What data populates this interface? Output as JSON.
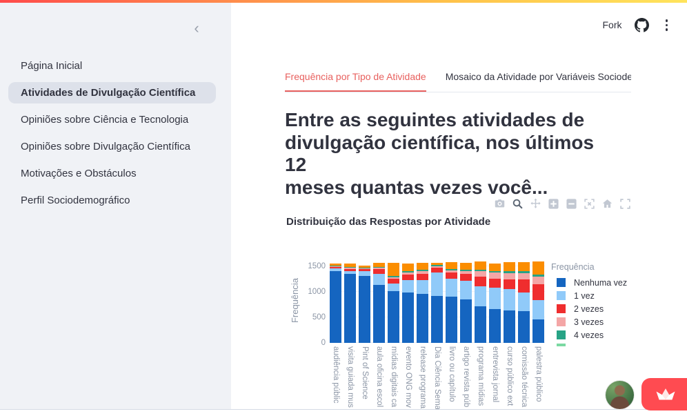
{
  "theme": {
    "decoration_gradient": [
      "#ff4b4b",
      "#ffc24a",
      "#ffe45c"
    ],
    "sidebar_bg": "#f0f2f6",
    "active_tab_color": "#e8605e",
    "badge_color": "#ff4b51"
  },
  "header": {
    "fork_label": "Fork",
    "icons": [
      "github-icon",
      "overflow-menu-icon"
    ]
  },
  "sidebar": {
    "collapse_icon": "chevron-left-icon",
    "items": [
      {
        "label": "Página Inicial",
        "active": false
      },
      {
        "label": "Atividades de Divulgação Científica",
        "active": true
      },
      {
        "label": "Opiniões sobre Ciência e Tecnologia",
        "active": false
      },
      {
        "label": "Opiniões sobre Divulgação Científica",
        "active": false
      },
      {
        "label": "Motivações e Obstáculos",
        "active": false
      },
      {
        "label": "Perfil Sociodemográfico",
        "active": false
      }
    ]
  },
  "tabs": [
    {
      "label": "Frequência por Tipo de Atividade",
      "active": true
    },
    {
      "label": "Mosaico da Atividade por Variáveis Sociodemográ",
      "active": false
    }
  ],
  "page": {
    "heading": "Entre as seguintes atividades de\ndivulgação científica, nos últimos 12\nmeses quantas vezes você..."
  },
  "chart": {
    "title": "Distribuição das Respostas por Atividade",
    "legend_title": "Frequência",
    "modebar": [
      {
        "name": "camera-icon",
        "active": false
      },
      {
        "name": "zoom-icon",
        "active": true
      },
      {
        "name": "pan-icon",
        "active": false
      },
      {
        "name": "zoom-in-icon",
        "active": false
      },
      {
        "name": "zoom-out-icon",
        "active": false
      },
      {
        "name": "autoscale-icon",
        "active": false
      },
      {
        "name": "reset-axes-icon",
        "active": false
      },
      {
        "name": "fullscreen-icon",
        "active": false
      }
    ],
    "legend_clipped_next_swatch_color": "#7bd9a2"
  },
  "chart_data": {
    "type": "bar",
    "stacked": true,
    "title": "Distribuição das Respostas por Atividade",
    "xlabel": "",
    "ylabel": "Frequência",
    "ylim": [
      0,
      1650
    ],
    "yticks": [
      0,
      500,
      1000,
      1500
    ],
    "grid": true,
    "legend_position": "right",
    "legend_title": "Frequência",
    "categories": [
      "audiência públic",
      "visita guiada mus",
      "Pint of Science",
      "aula oficina escol",
      "mídias digitais ca",
      "evento ONG mov",
      "release programa",
      "Dia Ciência Sema",
      "livro ou capítulo",
      "artigo revista púb",
      "programa mídias",
      "entrevista jornal",
      "curso público ext",
      "comissão técnica",
      "palestra público"
    ],
    "series": [
      {
        "name": "Nenhuma vez",
        "color": "#1565c0",
        "label_visible": true,
        "values": [
          1400,
          1350,
          1315,
          1140,
          1020,
          990,
          965,
          915,
          905,
          850,
          715,
          665,
          640,
          620,
          465
        ]
      },
      {
        "name": "1 vez",
        "color": "#90caf9",
        "label_visible": true,
        "values": [
          55,
          55,
          100,
          220,
          155,
          240,
          270,
          460,
          345,
          370,
          390,
          425,
          425,
          370,
          380
        ]
      },
      {
        "name": "2 vezes",
        "color": "#ef2d2e",
        "label_visible": true,
        "values": [
          30,
          40,
          35,
          95,
          95,
          110,
          120,
          95,
          125,
          130,
          185,
          175,
          195,
          250,
          315
        ]
      },
      {
        "name": "3 vezes",
        "color": "#f4a6a6",
        "label_visible": true,
        "values": [
          15,
          25,
          15,
          30,
          30,
          40,
          50,
          30,
          45,
          55,
          110,
          120,
          120,
          120,
          150
        ]
      },
      {
        "name": "4 vezes",
        "color": "#27a385",
        "label_visible": true,
        "values": [
          15,
          18,
          15,
          20,
          25,
          25,
          25,
          25,
          30,
          30,
          30,
          30,
          35,
          35,
          35
        ]
      },
      {
        "name": "",
        "color": "#fb8d00",
        "label_visible": false,
        "values": [
          35,
          65,
          45,
          80,
          250,
          150,
          130,
          45,
          140,
          140,
          165,
          155,
          175,
          175,
          250
        ]
      }
    ]
  }
}
